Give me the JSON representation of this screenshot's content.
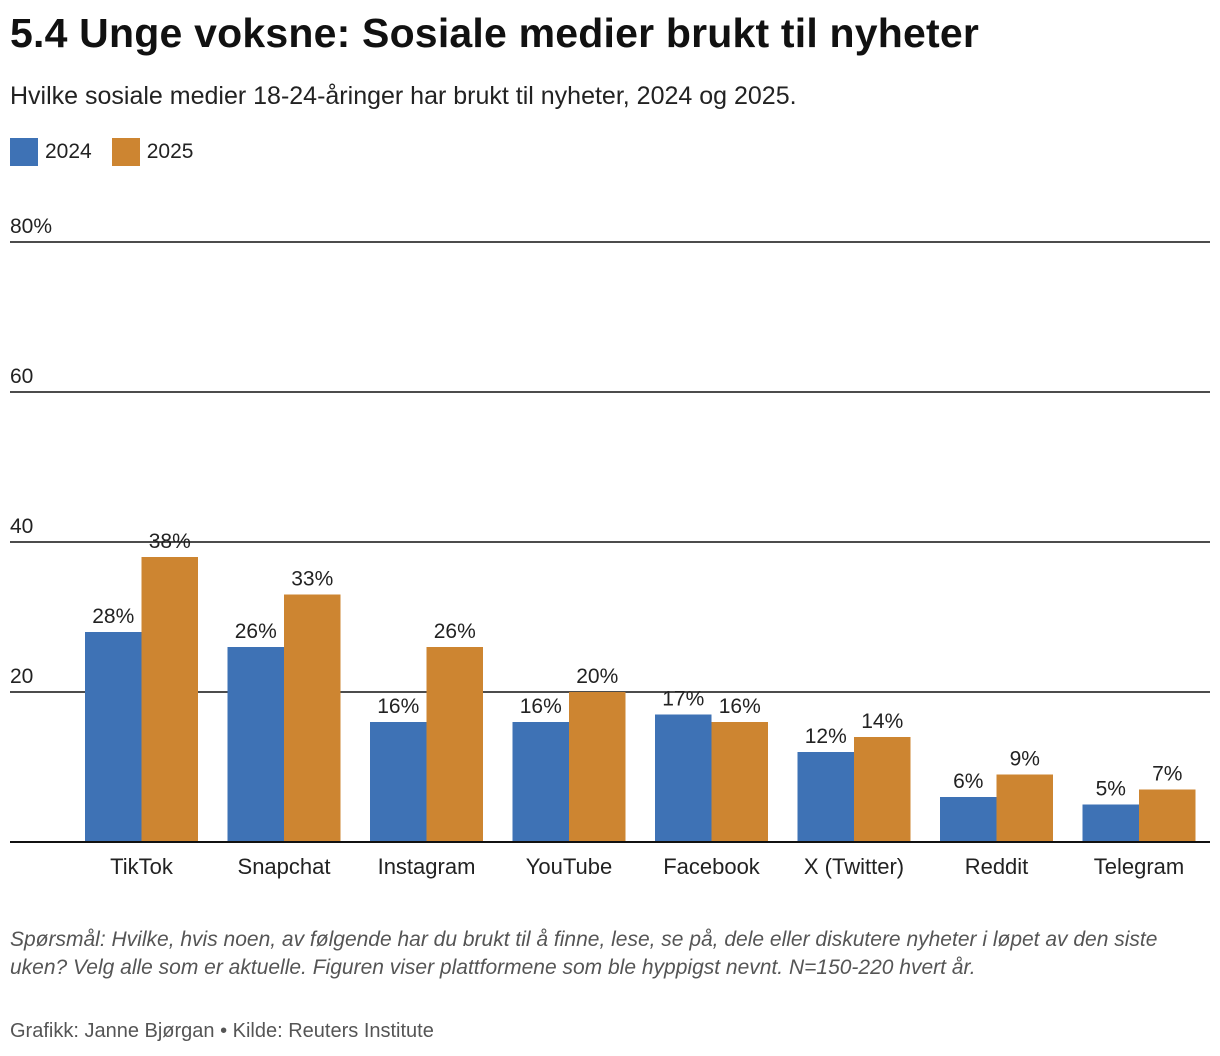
{
  "title": "5.4 Unge voksne: Sosiale medier brukt til nyheter",
  "subtitle": "Hvilke sosiale medier 18-24-åringer har brukt til nyheter, 2024 og 2025.",
  "colors": {
    "series_2024": "#3e72b5",
    "series_2025": "#cd8531",
    "grid": "#111111"
  },
  "chart_data": {
    "type": "bar",
    "categories": [
      "TikTok",
      "Snapchat",
      "Instagram",
      "YouTube",
      "Facebook",
      "X (Twitter)",
      "Reddit",
      "Telegram"
    ],
    "series": [
      {
        "name": "2024",
        "values": [
          28,
          26,
          16,
          16,
          17,
          12,
          6,
          5
        ]
      },
      {
        "name": "2025",
        "values": [
          38,
          33,
          26,
          20,
          16,
          14,
          9,
          7
        ]
      }
    ],
    "ylim": [
      0,
      80
    ],
    "yticks": [
      20,
      40,
      60,
      80
    ],
    "ytick_labels": [
      "20",
      "40",
      "60",
      "80%"
    ],
    "data_label_suffix": "%",
    "grid": true,
    "legend_position": "top-left"
  },
  "notes": "Spørsmål: Hvilke, hvis noen, av følgende har du brukt til å finne, lese, se på, dele eller diskutere nyheter i løpet av den siste uken? Velg alle som er aktuelle. Figuren viser plattformene som ble hyppigst nevnt. N=150-220 hvert år.",
  "credit": "Grafikk: Janne Bjørgan • Kilde: Reuters Institute"
}
